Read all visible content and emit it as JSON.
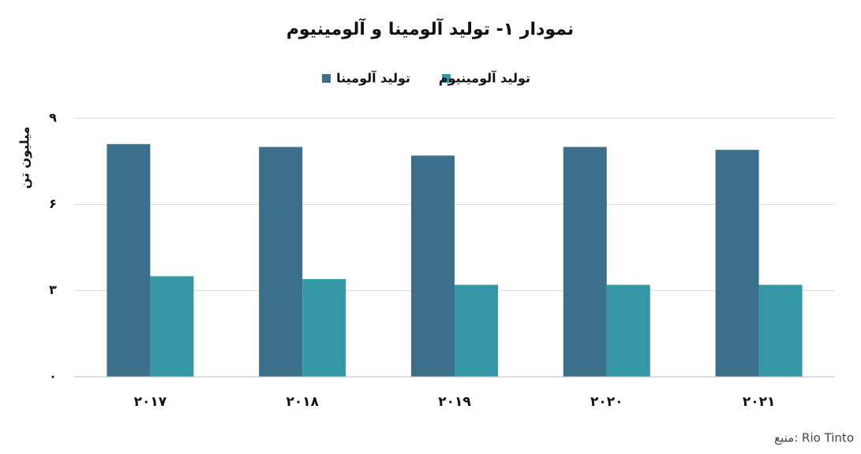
{
  "chart_data": {
    "type": "bar",
    "title": "نمودار ۱- تولید آلومینا و آلومینیوم",
    "y_label": "میلیون تن",
    "source": "منبع: Rio Tinto",
    "categories": [
      "۲۰۱۷",
      "۲۰۱۸",
      "۲۰۱۹",
      "۲۰۲۰",
      "۲۰۲۱"
    ],
    "series": [
      {
        "name": "تولید آلومینا",
        "color": "#3b6f8b",
        "values": [
          8.1,
          8.0,
          7.7,
          8.0,
          7.9
        ]
      },
      {
        "name": "تولید آلومینیوم",
        "color": "#3597a6",
        "values": [
          3.5,
          3.4,
          3.2,
          3.2,
          3.2
        ]
      }
    ],
    "ylim": [
      0,
      9
    ],
    "yticks": [
      {
        "value": 0,
        "label": "۰"
      },
      {
        "value": 3,
        "label": "۳"
      },
      {
        "value": 6,
        "label": "۶"
      },
      {
        "value": 9,
        "label": "۹"
      }
    ],
    "grid": true
  }
}
